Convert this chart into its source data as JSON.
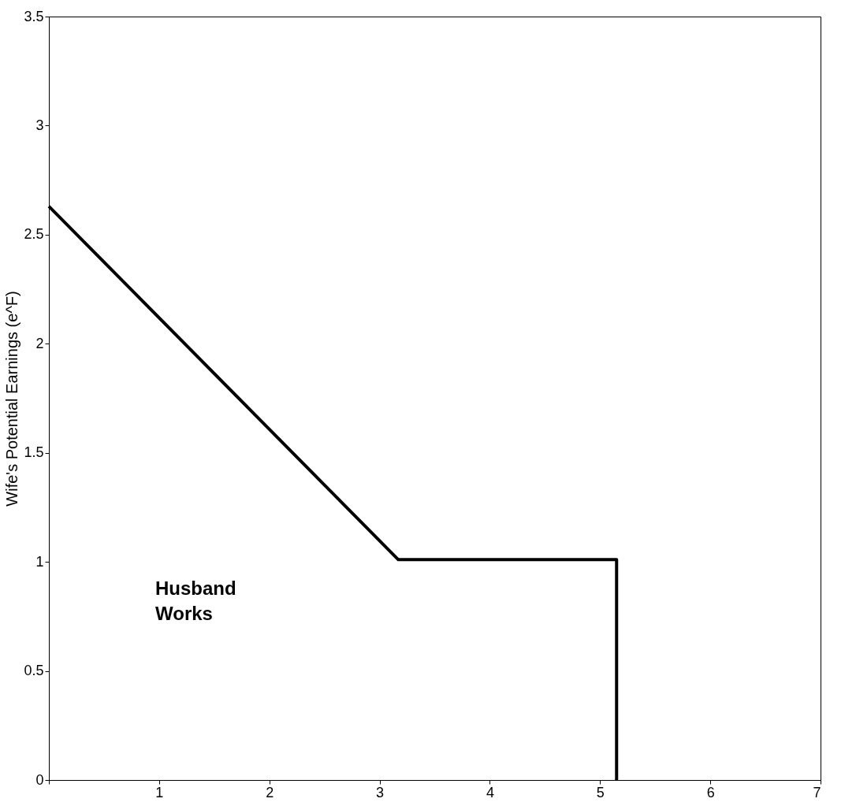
{
  "chart_data": {
    "type": "line",
    "ylabel": "Wife's Potential Earnings (e^F)",
    "x": [
      0,
      3.17,
      5.15,
      5.15
    ],
    "series": [
      {
        "color": "#000000",
        "values": [
          2.63,
          1.01,
          1.01,
          0
        ]
      }
    ],
    "xlim": [
      0,
      7
    ],
    "xticks": [
      {
        "value": 0,
        "label": null
      },
      1,
      2,
      3,
      4,
      5,
      6,
      7
    ],
    "ylim": [
      0,
      3.5
    ],
    "yticks": [
      0,
      0.5,
      1,
      1.5,
      2,
      2.5,
      3,
      3.5
    ],
    "grid": false,
    "marker": "none",
    "line_style": "solid",
    "annotations": [
      "Husband\n Works"
    ]
  }
}
